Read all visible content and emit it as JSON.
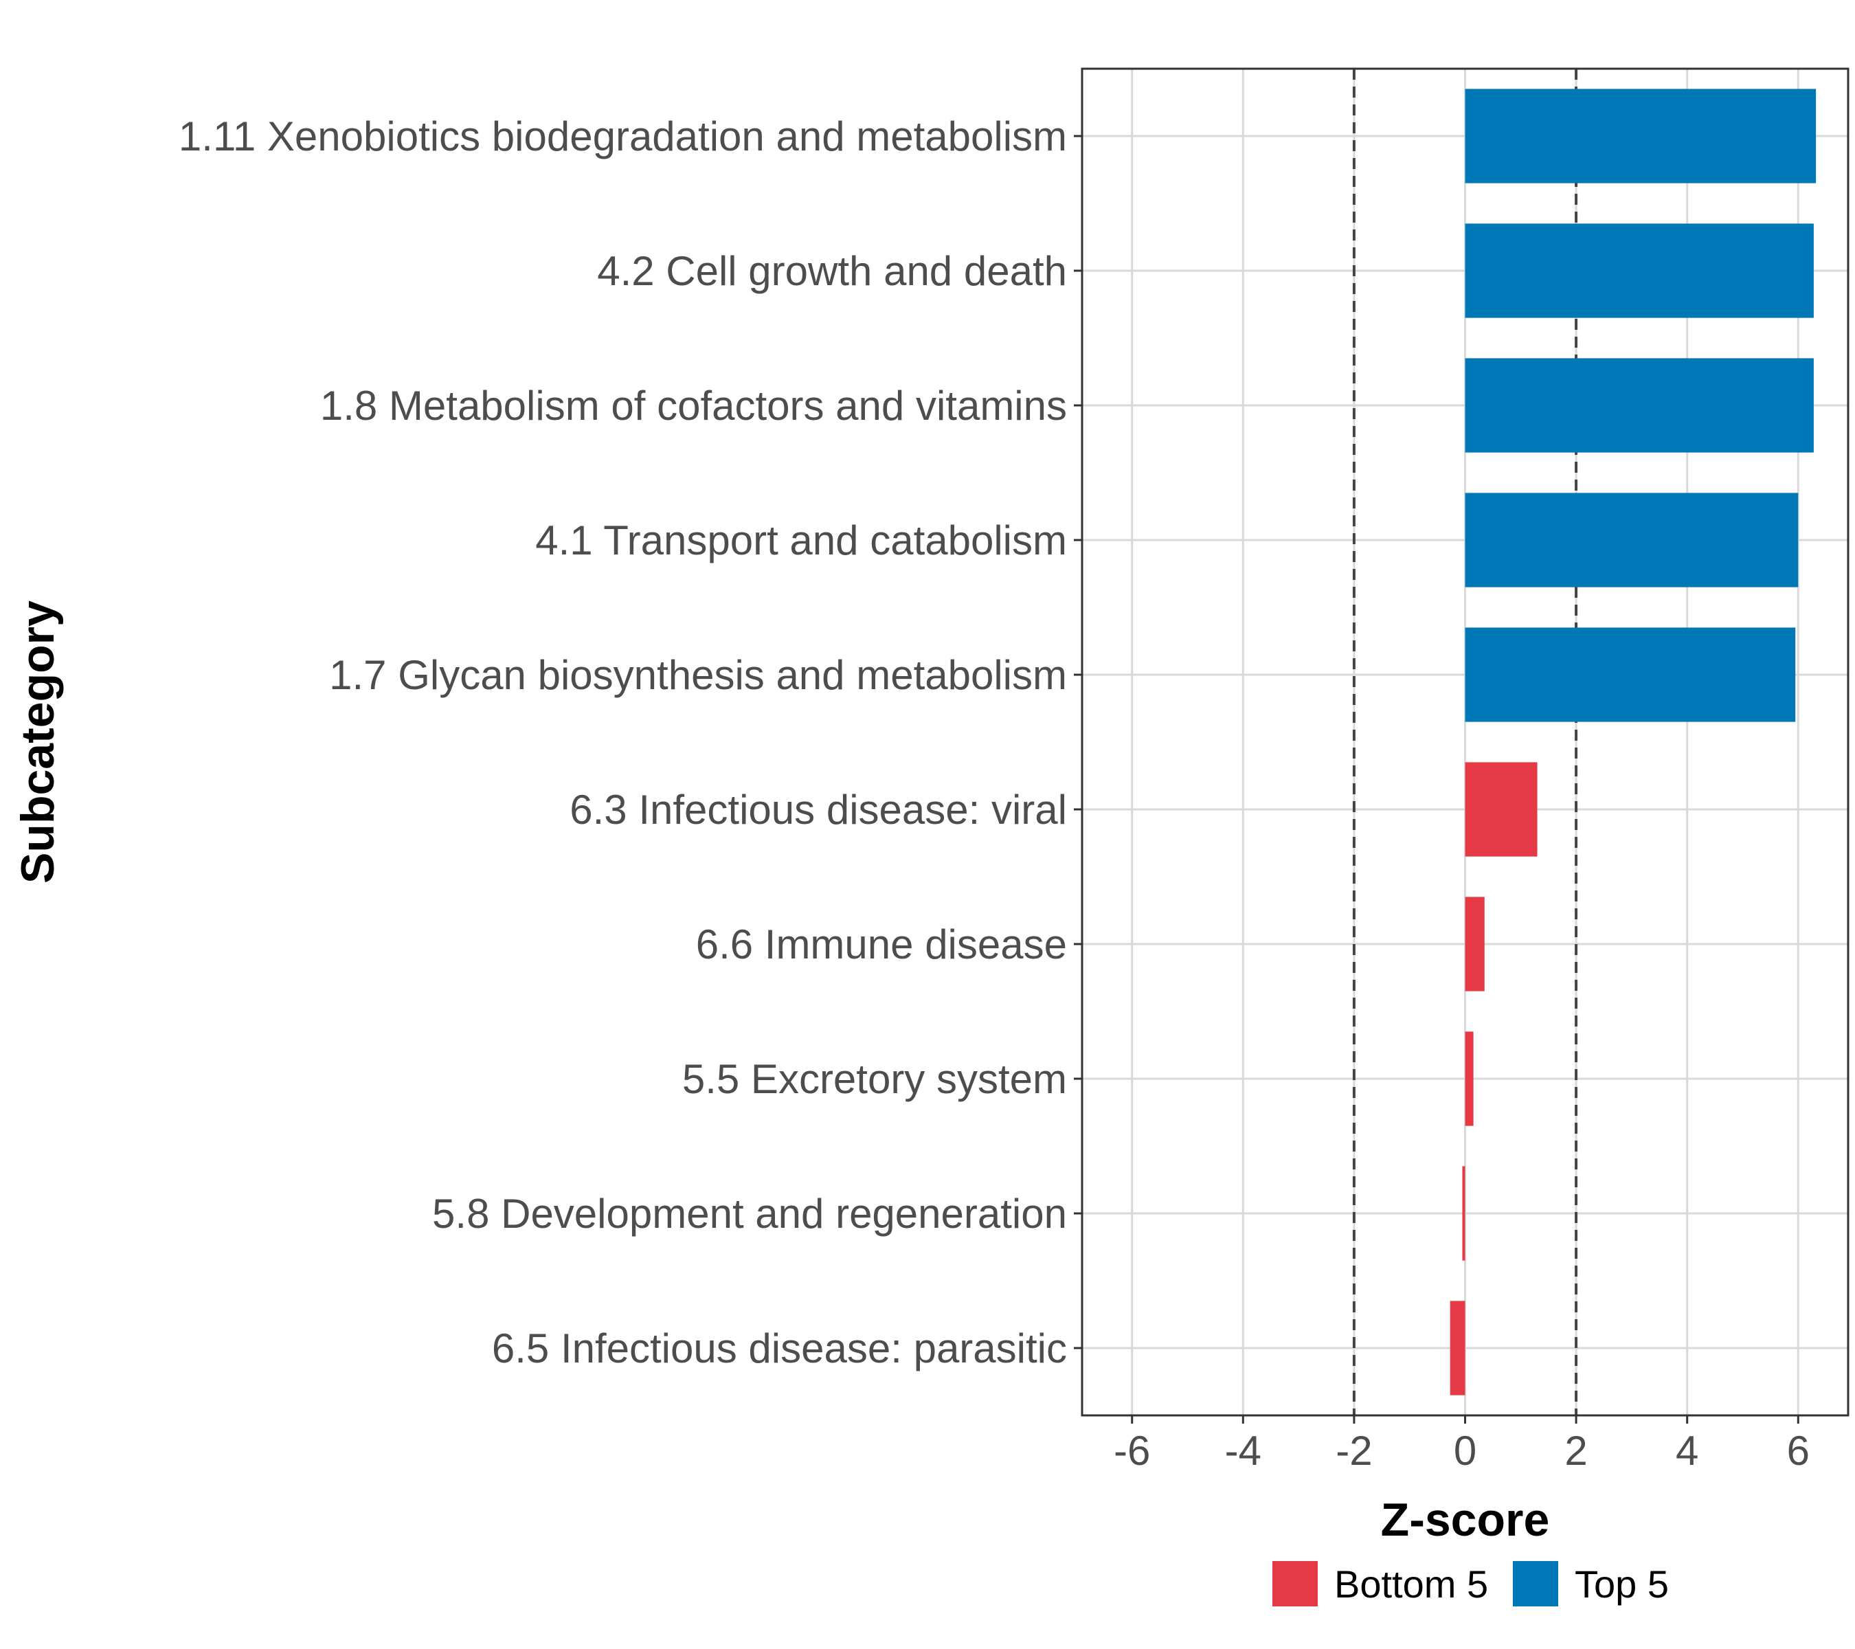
{
  "chart_data": {
    "type": "bar",
    "orientation": "horizontal",
    "title": "",
    "xlabel": "Z-score",
    "ylabel": "Subcategory",
    "xlim": [
      -6.9,
      6.9
    ],
    "xticks": [
      -6,
      -4,
      -2,
      0,
      2,
      4,
      6
    ],
    "xtick_labels": [
      "-6",
      "-4",
      "-2",
      "0",
      "2",
      "4",
      "6"
    ],
    "reference_lines": [
      -2,
      2
    ],
    "grid": true,
    "legend_position": "bottom",
    "groups": [
      {
        "name": "Bottom 5",
        "color": "#e63946"
      },
      {
        "name": "Top 5",
        "color": "#0077b6"
      }
    ],
    "categories": [
      "1.11 Xenobiotics biodegradation and metabolism",
      "4.2 Cell growth and death",
      "1.8 Metabolism of cofactors and vitamins",
      "4.1 Transport and catabolism",
      "1.7 Glycan biosynthesis and metabolism",
      "6.3 Infectious disease: viral",
      "6.6 Immune disease",
      "5.5 Excretory system",
      "5.8 Development and regeneration",
      "6.5 Infectious disease: parasitic"
    ],
    "values": [
      6.32,
      6.28,
      6.28,
      6.0,
      5.95,
      1.3,
      0.35,
      0.15,
      -0.05,
      -0.27
    ],
    "group_of_bar": [
      "Top 5",
      "Top 5",
      "Top 5",
      "Top 5",
      "Top 5",
      "Bottom 5",
      "Bottom 5",
      "Bottom 5",
      "Bottom 5",
      "Bottom 5"
    ]
  }
}
